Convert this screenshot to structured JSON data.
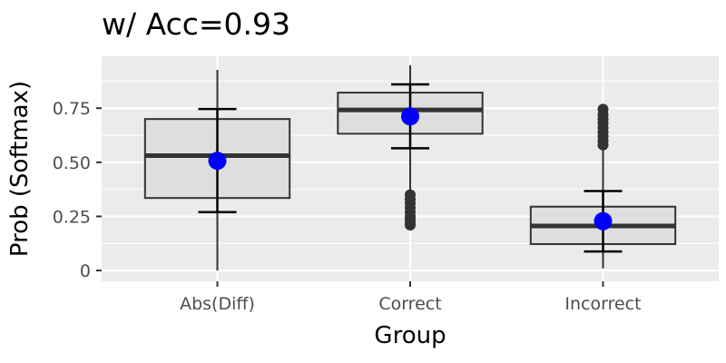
{
  "chart_data": {
    "type": "boxplot",
    "title": "w/ Acc=0.93",
    "xlabel": "Group",
    "ylabel": "Prob (Softmax)",
    "categories": [
      "Abs(Diff)",
      "Correct",
      "Incorrect"
    ],
    "ylim": [
      -0.05,
      0.99
    ],
    "yticks": [
      0,
      0.25,
      0.5,
      0.75
    ],
    "ytick_labels": [
      "0",
      "0.25",
      "0.50",
      "0.75"
    ],
    "grid": true,
    "boxes": [
      {
        "q1": 0.335,
        "median": 0.531,
        "q3": 0.7,
        "whisker_low": 0.0,
        "whisker_high": 0.927,
        "outliers": []
      },
      {
        "q1": 0.632,
        "median": 0.742,
        "q3": 0.822,
        "whisker_low": 0.36,
        "whisker_high": 0.948,
        "outliers": [
          0.21,
          0.22,
          0.235,
          0.25,
          0.27,
          0.29,
          0.31,
          0.33,
          0.35
        ]
      },
      {
        "q1": 0.122,
        "median": 0.206,
        "q3": 0.295,
        "whisker_low": 0.01,
        "whisker_high": 0.57,
        "outliers": [
          0.58,
          0.6,
          0.62,
          0.64,
          0.66,
          0.68,
          0.7,
          0.72,
          0.745
        ]
      }
    ],
    "mean": [
      0.507,
      0.712,
      0.228
    ],
    "errorbar_low": [
      0.27,
      0.565,
      0.088
    ],
    "errorbar_high": [
      0.746,
      0.86,
      0.367
    ],
    "colors": {
      "panel": "#ebebeb",
      "box_fill": "#dedede",
      "box_line": "#333333",
      "mean_point": "#0000ff"
    }
  }
}
